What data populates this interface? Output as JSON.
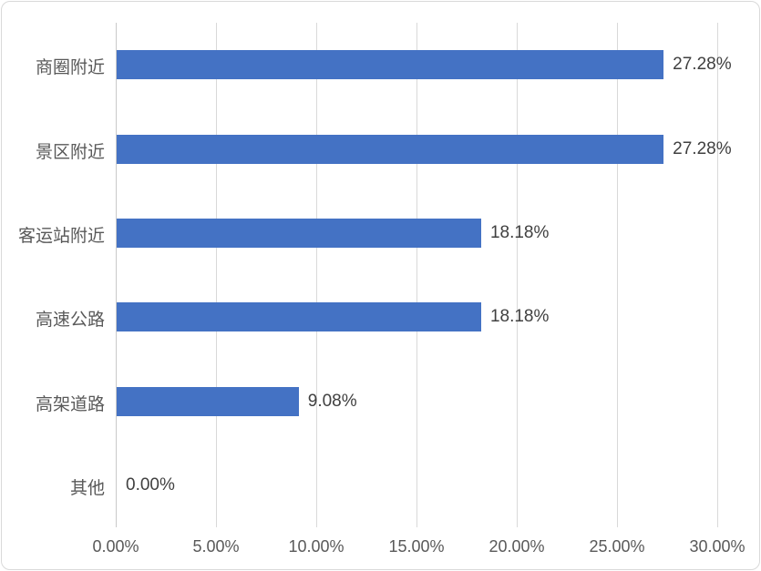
{
  "chart_data": {
    "type": "bar",
    "orientation": "horizontal",
    "title": "",
    "xlabel": "",
    "ylabel": "",
    "categories": [
      "商圈附近",
      "景区附近",
      "客运站附近",
      "高速公路",
      "高架道路",
      "其他"
    ],
    "values": [
      27.28,
      27.28,
      18.18,
      18.18,
      9.08,
      0.0
    ],
    "data_labels": [
      "27.28%",
      "27.28%",
      "18.18%",
      "18.18%",
      "9.08%",
      "0.00%"
    ],
    "xlim": [
      0,
      30
    ],
    "x_ticks": [
      0,
      5,
      10,
      15,
      20,
      25,
      30
    ],
    "x_tick_labels": [
      "0.00%",
      "5.00%",
      "10.00%",
      "15.00%",
      "20.00%",
      "25.00%",
      "30.00%"
    ],
    "grid": "vertical-only",
    "legend": "none",
    "colors": {
      "bar": "#4472C4",
      "gridline": "#D9D9D9",
      "axis_line": "#C9C9C9",
      "category_label": "#595959",
      "tick_label": "#595959",
      "data_label": "#404040",
      "frame_border": "#D9D9D9",
      "background": "#FFFFFF"
    }
  }
}
